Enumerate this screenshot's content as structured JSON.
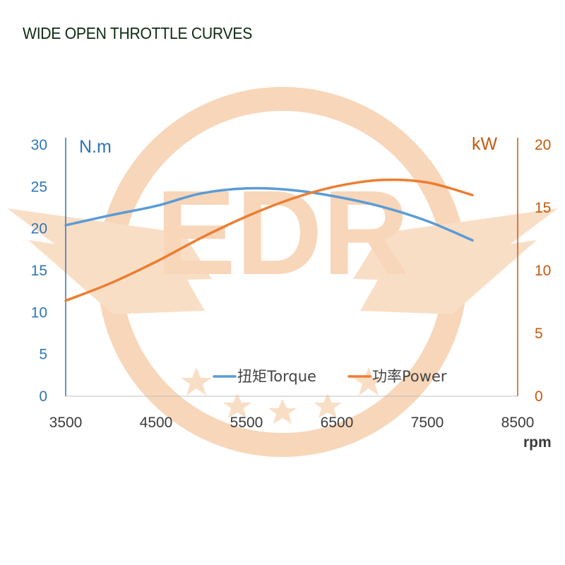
{
  "title": "WIDE OPEN THROTTLE CURVES",
  "watermark": {
    "text": "EDR",
    "color": "#f6c9a2"
  },
  "colors": {
    "torque": "#5b9bd5",
    "power": "#ed7d31",
    "left_axis": "#2e75b6",
    "right_axis": "#c55a11",
    "x_axis": "#3a3a3a"
  },
  "chart_data": {
    "type": "line",
    "title": "WIDE OPEN THROTTLE CURVES",
    "xlabel": "rpm",
    "xlim": [
      3500,
      8500
    ],
    "x_ticks": [
      "3500",
      "4500",
      "5500",
      "6500",
      "7500",
      "8500"
    ],
    "y_left": {
      "label": "N.m",
      "lim": [
        0,
        30
      ],
      "ticks": [
        "0",
        "5",
        "10",
        "15",
        "20",
        "25",
        "30"
      ]
    },
    "y_right": {
      "label": "kW",
      "lim": [
        0,
        20
      ],
      "ticks": [
        "0",
        "5",
        "10",
        "15",
        "20"
      ]
    },
    "grid": false,
    "legend_position": "bottom-center",
    "series": [
      {
        "name": "扭矩Torque",
        "axis": "left",
        "x": [
          3500,
          4000,
          4500,
          5000,
          5500,
          6000,
          6500,
          7000,
          7500,
          8000
        ],
        "values": [
          20.4,
          21.6,
          22.7,
          24.2,
          24.8,
          24.6,
          23.8,
          22.6,
          20.9,
          18.6
        ]
      },
      {
        "name": "功率Power",
        "axis": "right",
        "x": [
          3500,
          4000,
          4500,
          5000,
          5500,
          6000,
          6500,
          7000,
          7500,
          8000
        ],
        "values": [
          7.6,
          9.0,
          10.7,
          12.6,
          14.3,
          15.7,
          16.7,
          17.2,
          17.0,
          16.0
        ]
      }
    ]
  }
}
